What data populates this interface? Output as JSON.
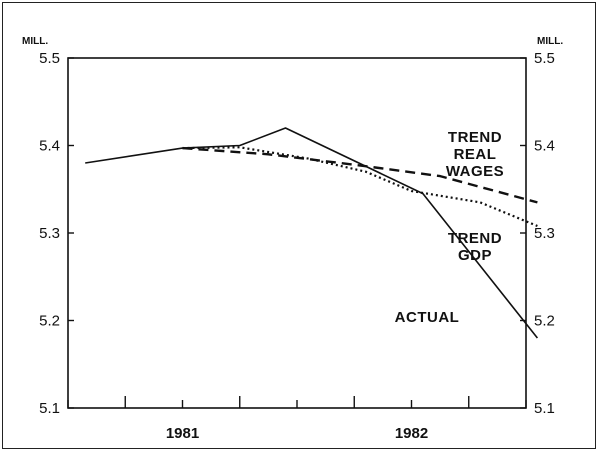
{
  "chart_data": {
    "type": "line",
    "unit_left": "MILL.",
    "unit_right": "MILL.",
    "ylim": [
      5.1,
      5.5
    ],
    "y_ticks": [
      "5.5",
      "5.4",
      "5.3",
      "5.2",
      "5.1"
    ],
    "x_tick_labels": [
      "1981",
      "1982"
    ],
    "x_domain": [
      0,
      8
    ],
    "x_tick_positions": [
      0,
      1,
      2,
      3,
      4,
      5,
      6,
      7,
      8
    ],
    "x_label_positions": [
      2,
      6
    ],
    "series": [
      {
        "name": "ACTUAL",
        "style": "solid",
        "label_lines": [
          "ACTUAL"
        ],
        "x": [
          0.3,
          2.0,
          3.0,
          3.8,
          6.2,
          8.2
        ],
        "y": [
          5.38,
          5.397,
          5.4,
          5.42,
          5.345,
          5.18
        ]
      },
      {
        "name": "TREND REAL WAGES",
        "style": "dashed",
        "label_lines": [
          "TREND",
          "REAL",
          "WAGES"
        ],
        "x": [
          2.0,
          3.5,
          5.0,
          6.5,
          8.2
        ],
        "y": [
          5.397,
          5.39,
          5.378,
          5.365,
          5.335
        ]
      },
      {
        "name": "TREND GDP",
        "style": "dotted",
        "label_lines": [
          "TREND",
          "GDP"
        ],
        "x": [
          2.0,
          3.0,
          4.2,
          5.2,
          6.0,
          7.2,
          8.2
        ],
        "y": [
          5.397,
          5.398,
          5.385,
          5.37,
          5.348,
          5.335,
          5.308
        ]
      }
    ]
  }
}
